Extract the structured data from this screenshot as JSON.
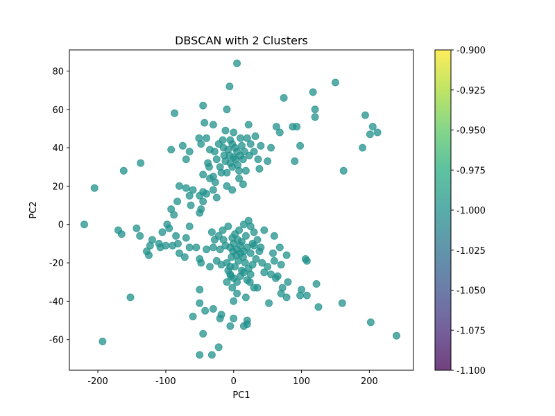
{
  "chart_data": {
    "type": "scatter",
    "title": "DBSCAN with 2 Clusters",
    "xlabel": "PC1",
    "ylabel": "PC2",
    "xlim": [
      -242,
      265
    ],
    "ylim": [
      -76,
      91
    ],
    "xticks": [
      -200,
      -100,
      0,
      100,
      200
    ],
    "yticks": [
      -60,
      -40,
      -20,
      0,
      20,
      40,
      60,
      80
    ],
    "grid": false,
    "legend": "none",
    "point_color": "#21918c",
    "colorbar": {
      "range": [
        -1.1,
        -0.9
      ],
      "ticks": [
        "-0.900",
        "-0.925",
        "-0.950",
        "-0.975",
        "-1.000",
        "-1.025",
        "-1.050",
        "-1.075",
        "-1.100"
      ],
      "tick_values": [
        -0.9,
        -0.925,
        -0.95,
        -0.975,
        -1.0,
        -1.025,
        -1.05,
        -1.075,
        -1.1
      ],
      "colormap": [
        "#440154",
        "#472c7a",
        "#3b518b",
        "#2c718e",
        "#21918c",
        "#27ad81",
        "#5cc863",
        "#aadc32",
        "#fde725"
      ]
    },
    "series": [
      {
        "values": [
          [
            5,
            84
          ],
          [
            -6,
            72
          ],
          [
            150,
            74
          ],
          [
            117,
            69
          ],
          [
            74,
            66
          ],
          [
            -45,
            62
          ],
          [
            -10,
            60
          ],
          [
            120,
            60
          ],
          [
            -87,
            58
          ],
          [
            194,
            57
          ],
          [
            120,
            56
          ],
          [
            -43,
            53
          ],
          [
            -30,
            52
          ],
          [
            22,
            52
          ],
          [
            63,
            51
          ],
          [
            87,
            51
          ],
          [
            93,
            51
          ],
          [
            205,
            51
          ],
          [
            68,
            48
          ],
          [
            212,
            48
          ],
          [
            -12,
            49
          ],
          [
            0,
            48
          ],
          [
            -5,
            44
          ],
          [
            10,
            45
          ],
          [
            20,
            45
          ],
          [
            32,
            46
          ],
          [
            -51,
            45
          ],
          [
            -40,
            45
          ],
          [
            -75,
            41
          ],
          [
            -65,
            38
          ],
          [
            -92,
            39
          ],
          [
            -48,
            42
          ],
          [
            -22,
            42
          ],
          [
            -15,
            40
          ],
          [
            -35,
            39
          ],
          [
            -28,
            38
          ],
          [
            -8,
            39
          ],
          [
            2,
            40
          ],
          [
            5,
            38
          ],
          [
            12,
            41
          ],
          [
            25,
            42
          ],
          [
            40,
            41
          ],
          [
            55,
            40
          ],
          [
            98,
            41
          ],
          [
            190,
            40
          ],
          [
            201,
            47
          ],
          [
            -70,
            34
          ],
          [
            -38,
            32
          ],
          [
            -25,
            34
          ],
          [
            -20,
            30
          ],
          [
            -12,
            33
          ],
          [
            -5,
            32
          ],
          [
            0,
            35
          ],
          [
            6,
            31
          ],
          [
            14,
            34
          ],
          [
            23,
            36
          ],
          [
            36,
            34
          ],
          [
            50,
            33
          ],
          [
            90,
            33
          ],
          [
            -2,
            30
          ],
          [
            8,
            28
          ],
          [
            -18,
            27
          ],
          [
            -10,
            27
          ],
          [
            -30,
            25
          ],
          [
            18,
            28
          ],
          [
            38,
            29
          ],
          [
            -162,
            28
          ],
          [
            -137,
            32
          ],
          [
            162,
            28
          ],
          [
            -35,
            24
          ],
          [
            -27,
            22
          ],
          [
            8,
            24
          ],
          [
            14,
            21
          ],
          [
            -80,
            20
          ],
          [
            -70,
            19
          ],
          [
            -60,
            18
          ],
          [
            -45,
            17
          ],
          [
            -50,
            15
          ],
          [
            -40,
            16
          ],
          [
            -30,
            18
          ],
          [
            -10,
            20
          ],
          [
            -2,
            18
          ],
          [
            -83,
            12
          ],
          [
            -65,
            15
          ],
          [
            -45,
            12
          ],
          [
            -25,
            14
          ],
          [
            -205,
            19
          ],
          [
            -63,
            10
          ],
          [
            -48,
            8
          ],
          [
            -92,
            8
          ],
          [
            -88,
            5
          ],
          [
            -50,
            6
          ],
          [
            -220,
            0
          ],
          [
            -98,
            0
          ],
          [
            -65,
            -1
          ],
          [
            -170,
            -3
          ],
          [
            -165,
            -5
          ],
          [
            -143,
            -2
          ],
          [
            -138,
            -6
          ],
          [
            -105,
            -4
          ],
          [
            -95,
            -2
          ],
          [
            -85,
            -6
          ],
          [
            -70,
            -7
          ],
          [
            -120,
            -8
          ],
          [
            -110,
            -10
          ],
          [
            -123,
            -11
          ],
          [
            -108,
            -12
          ],
          [
            -100,
            -11
          ],
          [
            -90,
            -11
          ],
          [
            -82,
            -10
          ],
          [
            -65,
            -12
          ],
          [
            -55,
            -12
          ],
          [
            -40,
            -13
          ],
          [
            -30,
            -12
          ],
          [
            -20,
            -13
          ],
          [
            -12,
            -11
          ],
          [
            -5,
            -12
          ],
          [
            0,
            -10
          ],
          [
            5,
            -13
          ],
          [
            10,
            -11
          ],
          [
            15,
            -14
          ],
          [
            20,
            -12
          ],
          [
            25,
            -15
          ],
          [
            30,
            -11
          ],
          [
            40,
            -12
          ],
          [
            -128,
            -14
          ],
          [
            -125,
            -16
          ],
          [
            -80,
            -15
          ],
          [
            -72,
            -17
          ],
          [
            -50,
            -18
          ],
          [
            -48,
            -20
          ],
          [
            -35,
            -22
          ],
          [
            -25,
            -19
          ],
          [
            -18,
            -21
          ],
          [
            -10,
            -20
          ],
          [
            -3,
            -17
          ],
          [
            2,
            -22
          ],
          [
            7,
            -19
          ],
          [
            12,
            -24
          ],
          [
            17,
            -20
          ],
          [
            22,
            -23
          ],
          [
            28,
            -21
          ],
          [
            33,
            -18
          ],
          [
            42,
            -20
          ],
          [
            50,
            -22
          ],
          [
            60,
            -19
          ],
          [
            70,
            -21
          ],
          [
            78,
            -16
          ],
          [
            106,
            -18
          ],
          [
            108,
            -19
          ],
          [
            -5,
            -26
          ],
          [
            0,
            -28
          ],
          [
            5,
            -30
          ],
          [
            10,
            -27
          ],
          [
            15,
            -25
          ],
          [
            20,
            -29
          ],
          [
            25,
            -26
          ],
          [
            30,
            -33
          ],
          [
            35,
            -33
          ],
          [
            45,
            -25
          ],
          [
            55,
            -26
          ],
          [
            62,
            -28
          ],
          [
            65,
            -27
          ],
          [
            72,
            -33
          ],
          [
            80,
            -30
          ],
          [
            -2,
            -33
          ],
          [
            5,
            -36
          ],
          [
            -50,
            -34
          ],
          [
            -10,
            -30
          ],
          [
            0,
            -40
          ],
          [
            18,
            -38
          ],
          [
            70,
            -36
          ],
          [
            78,
            -38
          ],
          [
            100,
            -34
          ],
          [
            98,
            -37
          ],
          [
            108,
            -37
          ],
          [
            122,
            -31
          ],
          [
            -152,
            -38
          ],
          [
            -50,
            -41
          ],
          [
            -42,
            -45
          ],
          [
            -30,
            -44
          ],
          [
            52,
            -41
          ],
          [
            125,
            -43
          ],
          [
            160,
            -41
          ],
          [
            -18,
            -47
          ],
          [
            -20,
            -49
          ],
          [
            0,
            -49
          ],
          [
            20,
            -50
          ],
          [
            20,
            -52
          ],
          [
            -60,
            -48
          ],
          [
            -45,
            -57
          ],
          [
            -5,
            -53
          ],
          [
            15,
            -53
          ],
          [
            202,
            -51
          ],
          [
            -22,
            -64
          ],
          [
            -50,
            -68
          ],
          [
            -32,
            -68
          ],
          [
            -193,
            -61
          ],
          [
            240,
            -58
          ],
          [
            2,
            -5
          ],
          [
            8,
            -3
          ],
          [
            15,
            0
          ],
          [
            22,
            2
          ],
          [
            25,
            -1
          ],
          [
            30,
            -4
          ],
          [
            35,
            -8
          ],
          [
            18,
            -6
          ],
          [
            28,
            -10
          ],
          [
            -2,
            -7
          ],
          [
            6,
            -8
          ],
          [
            12,
            -9
          ],
          [
            -16,
            -3
          ],
          [
            -8,
            -1
          ],
          [
            -22,
            -6
          ],
          [
            -28,
            -8
          ],
          [
            -32,
            -4
          ],
          [
            -15,
            -8
          ],
          [
            60,
            -6
          ],
          [
            68,
            -12
          ],
          [
            58,
            -15
          ],
          [
            45,
            -3
          ],
          [
            38,
            -14
          ],
          [
            -5,
            -22
          ],
          [
            -8,
            -24
          ],
          [
            -4,
            -27
          ],
          [
            10,
            -15
          ],
          [
            14,
            -17
          ],
          [
            4,
            -16
          ],
          [
            -1,
            -14
          ],
          [
            24,
            -30
          ],
          [
            -14,
            36
          ],
          [
            -6,
            36
          ],
          [
            3,
            34
          ],
          [
            10,
            36
          ],
          [
            -16,
            44
          ],
          [
            -2,
            42
          ],
          [
            16,
            38
          ],
          [
            30,
            38
          ],
          [
            -45,
            26
          ],
          [
            -36,
            30
          ]
        ]
      }
    ]
  }
}
